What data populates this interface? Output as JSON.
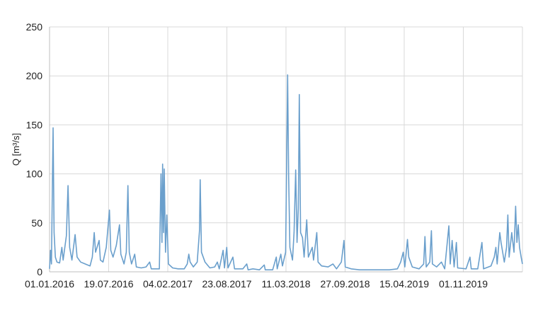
{
  "chart_data": {
    "type": "line",
    "title": "",
    "xlabel": "",
    "ylabel": "Q [m³/s]",
    "ylim": [
      0,
      250
    ],
    "yticks": [
      0,
      50,
      100,
      150,
      200,
      250
    ],
    "grid": true,
    "legend": "none",
    "line_color": "#6a9fcc",
    "x_tick_labels": [
      "01.01.2016",
      "19.07.2016",
      "04.02.2017",
      "23.08.2017",
      "11.03.2018",
      "27.09.2018",
      "15.04.2019",
      "01.11.2019"
    ],
    "x_range": [
      "2016-01-01",
      "2019-12-31"
    ],
    "series": [
      {
        "name": "",
        "points": [
          [
            "2016-01-01",
            3
          ],
          [
            "2016-01-04",
            22
          ],
          [
            "2016-01-07",
            8
          ],
          [
            "2016-01-10",
            95
          ],
          [
            "2016-01-12",
            147
          ],
          [
            "2016-01-15",
            40
          ],
          [
            "2016-01-19",
            15
          ],
          [
            "2016-01-24",
            10
          ],
          [
            "2016-02-01",
            9
          ],
          [
            "2016-02-08",
            25
          ],
          [
            "2016-02-12",
            12
          ],
          [
            "2016-02-22",
            37
          ],
          [
            "2016-02-27",
            88
          ],
          [
            "2016-03-03",
            25
          ],
          [
            "2016-03-10",
            12
          ],
          [
            "2016-03-20",
            38
          ],
          [
            "2016-03-26",
            15
          ],
          [
            "2016-04-06",
            10
          ],
          [
            "2016-04-20",
            8
          ],
          [
            "2016-05-05",
            6
          ],
          [
            "2016-05-12",
            15
          ],
          [
            "2016-05-18",
            40
          ],
          [
            "2016-05-22",
            20
          ],
          [
            "2016-06-02",
            32
          ],
          [
            "2016-06-06",
            12
          ],
          [
            "2016-06-14",
            10
          ],
          [
            "2016-06-24",
            25
          ],
          [
            "2016-07-04",
            63
          ],
          [
            "2016-07-08",
            22
          ],
          [
            "2016-07-15",
            15
          ],
          [
            "2016-07-25",
            27
          ],
          [
            "2016-08-04",
            48
          ],
          [
            "2016-08-08",
            18
          ],
          [
            "2016-08-18",
            8
          ],
          [
            "2016-08-25",
            20
          ],
          [
            "2016-08-30",
            88
          ],
          [
            "2016-09-03",
            20
          ],
          [
            "2016-09-10",
            8
          ],
          [
            "2016-09-20",
            18
          ],
          [
            "2016-09-25",
            5
          ],
          [
            "2016-10-10",
            4
          ],
          [
            "2016-10-25",
            5
          ],
          [
            "2016-11-05",
            10
          ],
          [
            "2016-11-10",
            3
          ],
          [
            "2016-11-25",
            3
          ],
          [
            "2016-12-05",
            3
          ],
          [
            "2016-12-10",
            100
          ],
          [
            "2016-12-13",
            30
          ],
          [
            "2016-12-15",
            110
          ],
          [
            "2016-12-18",
            40
          ],
          [
            "2016-12-20",
            105
          ],
          [
            "2016-12-24",
            20
          ],
          [
            "2016-12-28",
            58
          ],
          [
            "2017-01-02",
            8
          ],
          [
            "2017-01-15",
            4
          ],
          [
            "2017-02-01",
            3
          ],
          [
            "2017-02-20",
            3
          ],
          [
            "2017-03-01",
            8
          ],
          [
            "2017-03-06",
            18
          ],
          [
            "2017-03-10",
            10
          ],
          [
            "2017-03-20",
            5
          ],
          [
            "2017-04-01",
            10
          ],
          [
            "2017-04-08",
            42
          ],
          [
            "2017-04-10",
            94
          ],
          [
            "2017-04-14",
            20
          ],
          [
            "2017-04-25",
            10
          ],
          [
            "2017-05-10",
            4
          ],
          [
            "2017-05-25",
            5
          ],
          [
            "2017-06-02",
            10
          ],
          [
            "2017-06-08",
            3
          ],
          [
            "2017-06-20",
            22
          ],
          [
            "2017-06-24",
            4
          ],
          [
            "2017-07-01",
            25
          ],
          [
            "2017-07-05",
            4
          ],
          [
            "2017-07-20",
            15
          ],
          [
            "2017-07-25",
            3
          ],
          [
            "2017-08-05",
            3
          ],
          [
            "2017-08-20",
            3
          ],
          [
            "2017-09-01",
            8
          ],
          [
            "2017-09-05",
            2
          ],
          [
            "2017-09-20",
            3
          ],
          [
            "2017-10-10",
            2
          ],
          [
            "2017-10-25",
            7
          ],
          [
            "2017-10-28",
            2
          ],
          [
            "2017-11-20",
            2
          ],
          [
            "2017-12-01",
            15
          ],
          [
            "2017-12-04",
            3
          ],
          [
            "2017-12-15",
            18
          ],
          [
            "2017-12-20",
            6
          ],
          [
            "2017-12-30",
            20
          ],
          [
            "2018-01-05",
            201
          ],
          [
            "2018-01-08",
            100
          ],
          [
            "2018-01-12",
            25
          ],
          [
            "2018-01-20",
            12
          ],
          [
            "2018-01-25",
            40
          ],
          [
            "2018-01-30",
            104
          ],
          [
            "2018-02-03",
            30
          ],
          [
            "2018-02-07",
            65
          ],
          [
            "2018-02-10",
            181
          ],
          [
            "2018-02-14",
            40
          ],
          [
            "2018-02-20",
            35
          ],
          [
            "2018-02-25",
            15
          ],
          [
            "2018-03-05",
            53
          ],
          [
            "2018-03-10",
            15
          ],
          [
            "2018-03-22",
            25
          ],
          [
            "2018-03-26",
            12
          ],
          [
            "2018-04-05",
            40
          ],
          [
            "2018-04-09",
            10
          ],
          [
            "2018-04-20",
            6
          ],
          [
            "2018-05-10",
            5
          ],
          [
            "2018-05-25",
            8
          ],
          [
            "2018-06-05",
            3
          ],
          [
            "2018-06-20",
            10
          ],
          [
            "2018-06-28",
            32
          ],
          [
            "2018-07-02",
            5
          ],
          [
            "2018-07-20",
            3
          ],
          [
            "2018-08-15",
            2
          ],
          [
            "2018-09-15",
            2
          ],
          [
            "2018-10-15",
            2
          ],
          [
            "2018-11-15",
            2
          ],
          [
            "2018-12-10",
            3
          ],
          [
            "2018-12-20",
            10
          ],
          [
            "2018-12-28",
            20
          ],
          [
            "2019-01-02",
            5
          ],
          [
            "2019-01-10",
            33
          ],
          [
            "2019-01-14",
            15
          ],
          [
            "2019-01-25",
            5
          ],
          [
            "2019-02-15",
            3
          ],
          [
            "2019-03-01",
            8
          ],
          [
            "2019-03-05",
            36
          ],
          [
            "2019-03-09",
            5
          ],
          [
            "2019-03-20",
            10
          ],
          [
            "2019-03-25",
            42
          ],
          [
            "2019-03-28",
            8
          ],
          [
            "2019-04-10",
            5
          ],
          [
            "2019-04-25",
            10
          ],
          [
            "2019-05-05",
            3
          ],
          [
            "2019-05-18",
            47
          ],
          [
            "2019-05-22",
            8
          ],
          [
            "2019-05-28",
            32
          ],
          [
            "2019-06-03",
            5
          ],
          [
            "2019-06-10",
            30
          ],
          [
            "2019-06-14",
            4
          ],
          [
            "2019-07-10",
            3
          ],
          [
            "2019-07-22",
            15
          ],
          [
            "2019-07-26",
            3
          ],
          [
            "2019-08-15",
            3
          ],
          [
            "2019-08-28",
            30
          ],
          [
            "2019-09-02",
            3
          ],
          [
            "2019-09-25",
            6
          ],
          [
            "2019-10-05",
            15
          ],
          [
            "2019-10-10",
            25
          ],
          [
            "2019-10-14",
            8
          ],
          [
            "2019-10-22",
            40
          ],
          [
            "2019-10-26",
            30
          ],
          [
            "2019-11-05",
            10
          ],
          [
            "2019-11-12",
            25
          ],
          [
            "2019-11-16",
            58
          ],
          [
            "2019-11-20",
            15
          ],
          [
            "2019-11-28",
            40
          ],
          [
            "2019-12-05",
            20
          ],
          [
            "2019-12-10",
            67
          ],
          [
            "2019-12-14",
            30
          ],
          [
            "2019-12-18",
            48
          ],
          [
            "2019-12-22",
            25
          ],
          [
            "2019-12-27",
            15
          ],
          [
            "2019-12-31",
            8
          ]
        ]
      }
    ]
  }
}
